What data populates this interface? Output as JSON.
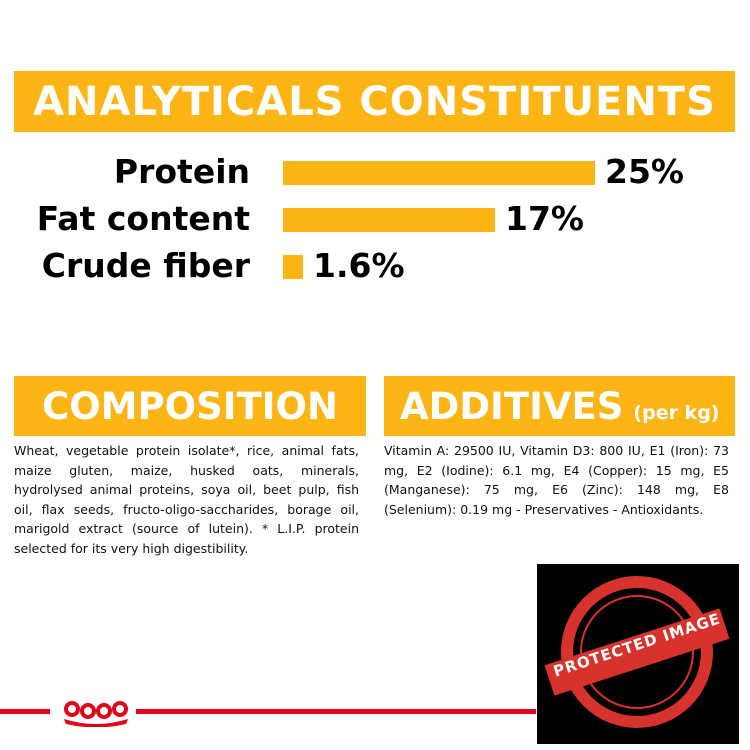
{
  "colors": {
    "accent": "#fdb515",
    "brand_red": "#e2001a",
    "watermark_red": "#d8322c"
  },
  "analytics": {
    "title": "ANALYTICALS CONSTITUENTS",
    "rows": [
      {
        "label": "Protein",
        "value_text": "25%",
        "value": 25
      },
      {
        "label": "Fat content",
        "value_text": "17%",
        "value": 17
      },
      {
        "label": "Crude fiber",
        "value_text": "1.6%",
        "value": 1.6
      }
    ]
  },
  "composition": {
    "title": "COMPOSITION",
    "text": "Wheat, vegetable protein isolate*, rice, animal fats, maize gluten, maize, husked oats, minerals, hydrolysed animal proteins, soya oil, beet pulp, fish oil, flax seeds, fructo-oligo-saccharides, borage oil, marigold extract (source of lutein). * L.I.P. protein selected for its very high digestibility."
  },
  "additives": {
    "title": "ADDITIVES",
    "subtitle": "(per kg)",
    "text": "Vitamin A: 29500 IU, Vitamin D3: 800 IU, E1 (Iron): 73 mg, E2 (Iodine): 6.1 mg, E4 (Copper): 15 mg, E5 (Manganese): 75 mg, E6 (Zinc): 148 mg, E8 (Selenium): 0.19 mg - Preservatives - Antioxidants."
  },
  "watermark": {
    "text": "PROTECTED IMAGE",
    "icon": "protected-image-stamp-icon"
  },
  "footer": {
    "logo_icon": "royal-canin-crown-icon"
  }
}
